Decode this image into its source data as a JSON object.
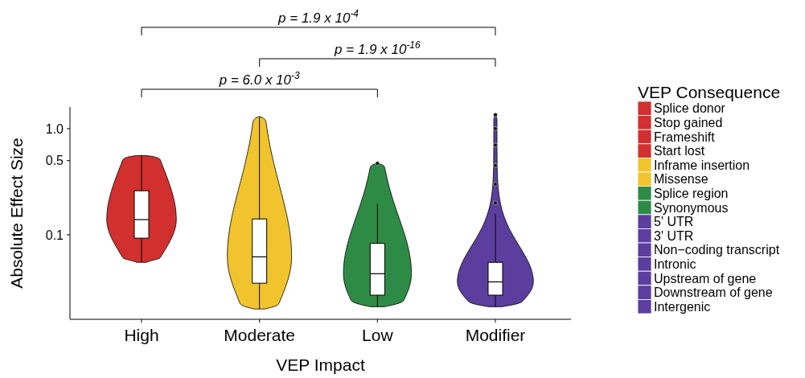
{
  "chart_data": {
    "type": "box",
    "categories": [
      "High",
      "Moderate",
      "Low",
      "Modifier"
    ],
    "xlabel": "VEP Impact",
    "ylabel": "Absolute Effect Size",
    "log": true,
    "ylim": [
      0.016,
      1.6
    ],
    "yticks": [
      0.1,
      0.5,
      {
        "value": 1,
        "label": "1.0"
      }
    ],
    "boxes": [
      {
        "low": 0.055,
        "q1": 0.093,
        "median": 0.139,
        "q3": 0.26,
        "high": 0.56
      },
      {
        "low": 0.02,
        "q1": 0.035,
        "median": 0.062,
        "q3": 0.141,
        "high": 1.3
      },
      {
        "low": 0.021,
        "q1": 0.027,
        "median": 0.043,
        "q3": 0.083,
        "high": 0.196,
        "outliers": [
          0.47
        ]
      },
      {
        "low": 0.021,
        "q1": 0.027,
        "median": 0.036,
        "q3": 0.055,
        "high": 0.157,
        "outliers": [
          0.2,
          0.3,
          0.45,
          0.7,
          1.0,
          1.35
        ]
      }
    ],
    "legend": "right",
    "legend_title": "VEP Consequence",
    "series": [
      {
        "name": "Splice donor",
        "color": "#d2302f",
        "values": [
          null,
          null,
          null,
          null
        ]
      },
      {
        "name": "Stop gained",
        "color": "#d2302f",
        "values": [
          null,
          null,
          null,
          null
        ]
      },
      {
        "name": "Frameshift",
        "color": "#d2302f",
        "values": [
          null,
          null,
          null,
          null
        ]
      },
      {
        "name": "Start lost",
        "color": "#d2302f",
        "values": [
          null,
          null,
          null,
          null
        ]
      },
      {
        "name": "Inframe insertion",
        "color": "#f1c42d",
        "values": [
          null,
          null,
          null,
          null
        ]
      },
      {
        "name": "Missense",
        "color": "#f1c42d",
        "values": [
          null,
          null,
          null,
          null
        ]
      },
      {
        "name": "Splice region",
        "color": "#2e8b45",
        "values": [
          null,
          null,
          null,
          null
        ]
      },
      {
        "name": "Synonymous",
        "color": "#2e8b45",
        "values": [
          null,
          null,
          null,
          null
        ]
      },
      {
        "name": "5' UTR",
        "color": "#5b3e9e",
        "values": [
          null,
          null,
          null,
          null
        ]
      },
      {
        "name": "3' UTR",
        "color": "#5b3e9e",
        "values": [
          null,
          null,
          null,
          null
        ]
      },
      {
        "name": "Non−coding transcript",
        "color": "#5b3e9e",
        "values": [
          null,
          null,
          null,
          null
        ]
      },
      {
        "name": "Intronic",
        "color": "#5b3e9e",
        "values": [
          null,
          null,
          null,
          null
        ]
      },
      {
        "name": "Upstream of gene",
        "color": "#5b3e9e",
        "values": [
          null,
          null,
          null,
          null
        ]
      },
      {
        "name": "Downstream of gene",
        "color": "#5b3e9e",
        "values": [
          null,
          null,
          null,
          null
        ]
      },
      {
        "name": "Intergenic",
        "color": "#5b3e9e",
        "values": [
          null,
          null,
          null,
          null
        ]
      }
    ],
    "annotations": [
      "p = 1.9 x 10$^{-4}$",
      "p = 1.9 x 10$^{-16}$",
      "p = 6.0 x 10$^{-3}$"
    ]
  }
}
